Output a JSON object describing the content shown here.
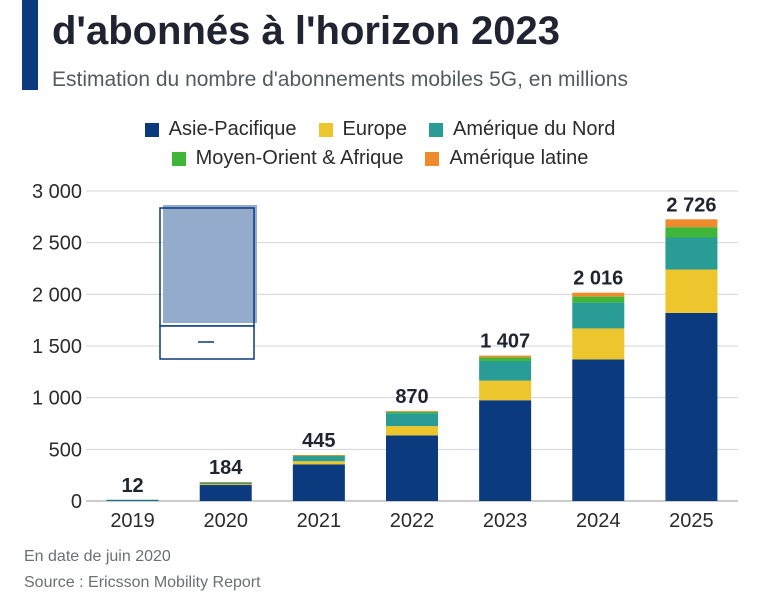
{
  "header": {
    "title": "d'abonnés à l'horizon 2023",
    "subtitle": "Estimation du nombre d'abonnements mobiles 5G, en millions"
  },
  "colors": {
    "accent": "#0b3a7e",
    "grid": "#d4d4d4",
    "axis_text": "#2b2b2b",
    "overlay_fill": "#8fa7c9",
    "overlay_border": "#0b3a7e"
  },
  "legend": [
    {
      "name": "Asie-Pacifique",
      "color": "#0b3a7e"
    },
    {
      "name": "Europe",
      "color": "#edc52d"
    },
    {
      "name": "Amérique du Nord",
      "color": "#2a9c96"
    },
    {
      "name": "Moyen-Orient & Afrique",
      "color": "#3fb638"
    },
    {
      "name": "Amérique latine",
      "color": "#ef8b2c"
    }
  ],
  "chart_data": {
    "type": "bar",
    "stacked": true,
    "title": "d'abonnés à l'horizon 2023",
    "subtitle": "Estimation du nombre d'abonnements mobiles 5G, en millions",
    "categories": [
      "2019",
      "2020",
      "2021",
      "2022",
      "2023",
      "2024",
      "2025"
    ],
    "series": [
      {
        "name": "Asie-Pacifique",
        "color": "#0b3a7e",
        "values": [
          10,
          160,
          355,
          635,
          975,
          1370,
          1820
        ]
      },
      {
        "name": "Europe",
        "color": "#edc52d",
        "values": [
          0,
          2,
          30,
          90,
          190,
          300,
          420
        ]
      },
      {
        "name": "Amérique du Nord",
        "color": "#2a9c96",
        "values": [
          2,
          20,
          50,
          125,
          190,
          250,
          310
        ]
      },
      {
        "name": "Moyen-Orient & Afrique",
        "color": "#3fb638",
        "values": [
          0,
          1,
          7,
          15,
          35,
          58,
          100
        ]
      },
      {
        "name": "Amérique latine",
        "color": "#ef8b2c",
        "values": [
          0,
          1,
          3,
          5,
          17,
          38,
          76
        ]
      }
    ],
    "totals": [
      12,
      184,
      445,
      870,
      1407,
      2016,
      2726
    ],
    "total_labels": [
      "12",
      "184",
      "445",
      "870",
      "1 407",
      "2 016",
      "2 726"
    ],
    "yticks": [
      0,
      500,
      1000,
      1500,
      2000,
      2500,
      3000
    ],
    "ytick_labels": [
      "0",
      "500",
      "1 000",
      "1 500",
      "2 000",
      "2 500",
      "3 000"
    ],
    "ylim": [
      0,
      3000
    ],
    "xlabel": "",
    "ylabel": "",
    "grid": true,
    "legend_position": "top-center"
  },
  "footer": {
    "note": "En date de juin 2020",
    "source": "Source : Ericsson Mobility Report"
  }
}
